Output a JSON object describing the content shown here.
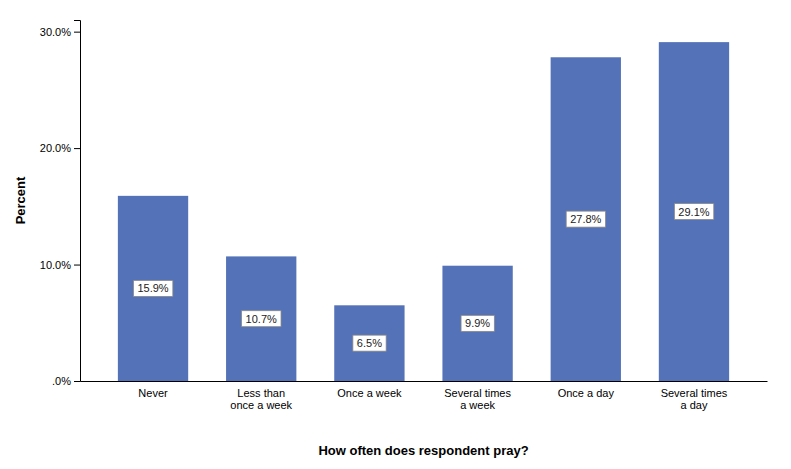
{
  "chart_data": {
    "type": "bar",
    "categories": [
      "Never",
      "Less than\nonce a week",
      "Once a week",
      "Several times\na week",
      "Once a day",
      "Several times\na day"
    ],
    "values": [
      15.9,
      10.7,
      6.5,
      9.9,
      27.8,
      29.1
    ],
    "value_labels": [
      "15.9%",
      "10.7%",
      "6.5%",
      "9.9%",
      "27.8%",
      "29.1%"
    ],
    "data_labels": true,
    "color": "#5472B8",
    "xlabel": "How often does respondent pray?",
    "ylabel": "Percent",
    "ylim": [
      0,
      31
    ],
    "yticks": [
      {
        "value": 0,
        "label": ".0%"
      },
      {
        "value": 10,
        "label": "10.0%"
      },
      {
        "value": 20,
        "label": "20.0%"
      },
      {
        "value": 30,
        "label": "30.0%"
      }
    ],
    "grid": false
  }
}
